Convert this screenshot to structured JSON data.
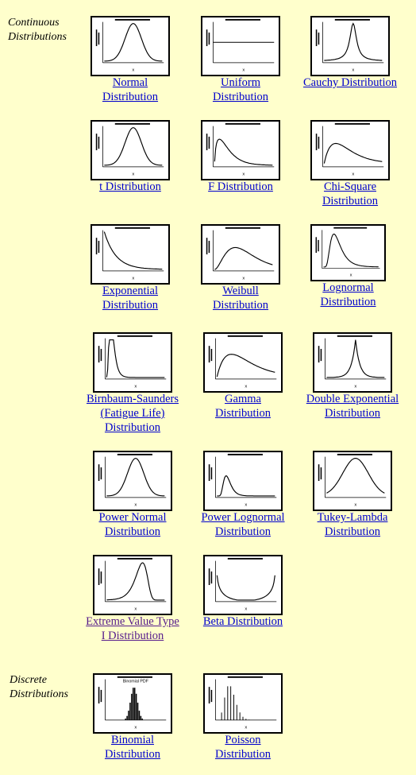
{
  "sections": {
    "continuous": "Continuous Distributions",
    "discrete": "Discrete Distributions"
  },
  "items": [
    {
      "id": "normal",
      "label": "Normal Distribution",
      "shape": "bell",
      "visited": false
    },
    {
      "id": "uniform",
      "label": "Uniform Distribution",
      "shape": "flat",
      "visited": false
    },
    {
      "id": "cauchy",
      "label": "Cauchy Distribution",
      "shape": "cauchy",
      "visited": false
    },
    {
      "id": "t",
      "label": "t Distribution",
      "shape": "bell",
      "visited": false
    },
    {
      "id": "f",
      "label": "F Distribution",
      "shape": "fdist",
      "visited": false
    },
    {
      "id": "chisq",
      "label": "Chi-Square Distribution",
      "shape": "chisq",
      "visited": false
    },
    {
      "id": "exponential",
      "label": "Exponential Distribution",
      "shape": "exp",
      "visited": false
    },
    {
      "id": "weibull",
      "label": "Weibull Distribution",
      "shape": "skew",
      "visited": false
    },
    {
      "id": "lognormal",
      "label": "Lognormal Distribution",
      "shape": "lognorm",
      "visited": false
    },
    {
      "id": "birnbaum",
      "label": "Birnbaum-Saunders (Fatigue Life) Distribution",
      "shape": "spike",
      "visited": false
    },
    {
      "id": "gamma",
      "label": "Gamma Distribution",
      "shape": "gamma",
      "visited": false
    },
    {
      "id": "doubleexp",
      "label": "Double Exponential Distribution",
      "shape": "laplace",
      "visited": false
    },
    {
      "id": "powernormal",
      "label": "Power Normal Distribution",
      "shape": "bell",
      "visited": false
    },
    {
      "id": "powerlognormal",
      "label": "Power Lognormal Distribution",
      "shape": "plognorm",
      "visited": false
    },
    {
      "id": "tukeylambda",
      "label": "Tukey-Lambda Distribution",
      "shape": "wide",
      "visited": false
    },
    {
      "id": "extremevalue",
      "label": "Extreme Value Type I Distribution",
      "shape": "gumbel",
      "visited": true
    },
    {
      "id": "beta",
      "label": "Beta Distribution",
      "shape": "ushape",
      "visited": false
    },
    {
      "id": "binomial",
      "label": "Binomial Distribution",
      "shape": "binom",
      "visited": false
    },
    {
      "id": "poisson",
      "label": "Poisson Distribution",
      "shape": "poisson",
      "visited": false
    }
  ]
}
